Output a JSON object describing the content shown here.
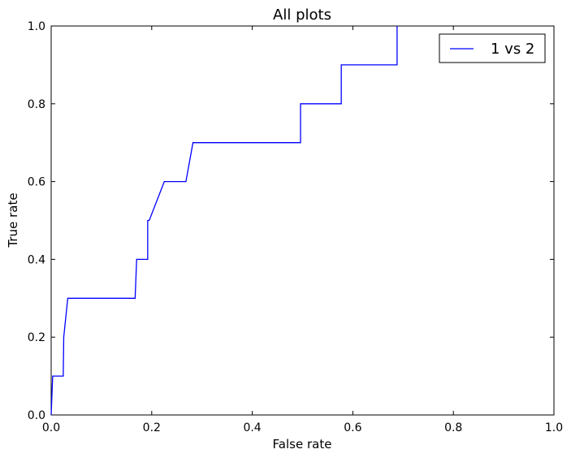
{
  "chart_data": {
    "type": "line",
    "title": "All plots",
    "xlabel": "False rate",
    "ylabel": "True rate",
    "xlim": [
      0.0,
      1.0
    ],
    "ylim": [
      0.0,
      1.0
    ],
    "xticks": [
      "0.0",
      "0.2",
      "0.4",
      "0.6",
      "0.8",
      "1.0"
    ],
    "yticks": [
      "0.0",
      "0.2",
      "0.4",
      "0.6",
      "0.8",
      "1.0"
    ],
    "grid": false,
    "legend_position": "top-right",
    "series": [
      {
        "name": "1 vs 2",
        "color": "#0000ff",
        "x": [
          0.0,
          0.003,
          0.003,
          0.024,
          0.025,
          0.033,
          0.167,
          0.17,
          0.192,
          0.192,
          0.195,
          0.225,
          0.268,
          0.282,
          0.496,
          0.496,
          0.577,
          0.577,
          0.688,
          0.688
        ],
        "y": [
          0.0,
          0.1,
          0.1,
          0.1,
          0.2,
          0.3,
          0.3,
          0.4,
          0.4,
          0.5,
          0.5,
          0.6,
          0.6,
          0.7,
          0.7,
          0.8,
          0.8,
          0.9,
          0.9,
          1.0
        ]
      }
    ]
  }
}
